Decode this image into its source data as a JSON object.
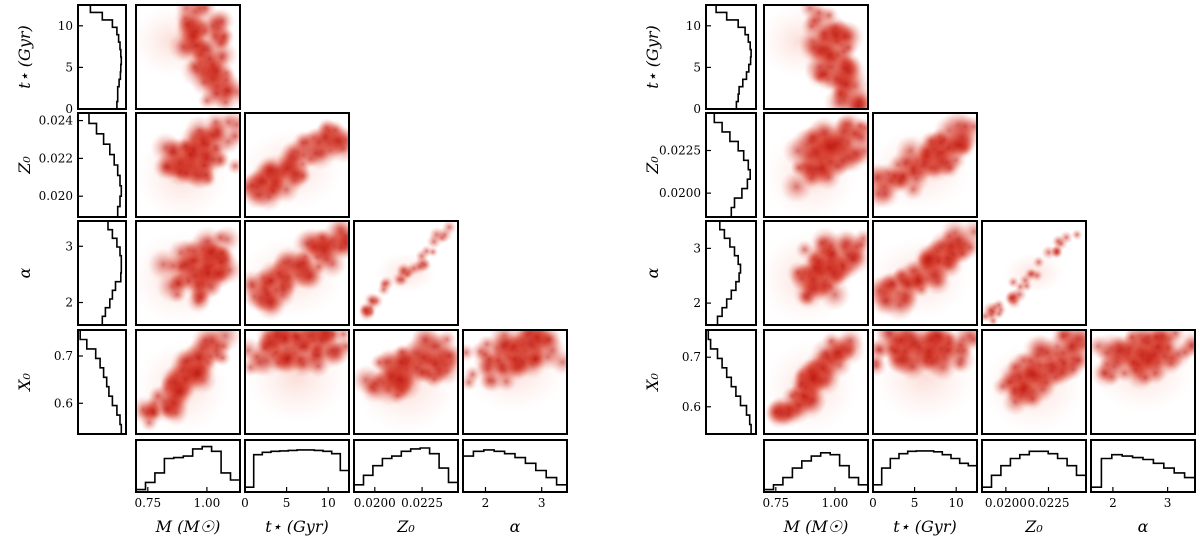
{
  "colors": {
    "density": "#c01810",
    "frame": "#000000",
    "histogram": "#000000",
    "background": "#ffffff"
  },
  "chart_data": [
    {
      "type": "corner-plot",
      "panel": "left",
      "parameters": [
        {
          "key": "M",
          "axis_label": "M (M☉)",
          "ticks": [
            0.75,
            1.0
          ],
          "tick_labels": [
            "0.75",
            "1.00"
          ],
          "range": [
            0.7,
            1.14
          ]
        },
        {
          "key": "t",
          "axis_label": "t⋆ (Gyr)",
          "ticks": [
            0,
            5,
            10
          ],
          "tick_labels": [
            "0",
            "5",
            "10"
          ],
          "range": [
            0,
            12.5
          ]
        },
        {
          "key": "Z0",
          "axis_label": "Z₀",
          "ticks": [
            0.02,
            0.022,
            0.024
          ],
          "tick_labels": [
            "0.020",
            "0.022",
            "0.024"
          ],
          "x_tick_labels": [
            "0.0200",
            "0.0225"
          ],
          "x_ticks": [
            0.02,
            0.0225
          ],
          "range": [
            0.0189,
            0.0244
          ]
        },
        {
          "key": "alpha",
          "axis_label": "α",
          "ticks": [
            2,
            3
          ],
          "tick_labels": [
            "2",
            "3"
          ],
          "range": [
            1.6,
            3.45
          ]
        },
        {
          "key": "X0",
          "axis_label": "X₀",
          "ticks": [
            0.6,
            0.7
          ],
          "tick_labels": [
            "0.6",
            "0.7"
          ],
          "range": [
            0.535,
            0.755
          ]
        }
      ],
      "histograms": {
        "t": [
          0.28,
          0.55,
          0.78,
          0.88,
          0.92,
          0.95,
          0.97,
          0.98,
          0.97,
          0.96,
          0.93,
          0.9,
          0.9,
          0.88
        ],
        "Z0": [
          0.25,
          0.42,
          0.58,
          0.72,
          0.82,
          0.9,
          0.95,
          0.98,
          0.95,
          0.9
        ],
        "alpha": [
          0.68,
          0.78,
          0.88,
          0.95,
          0.98,
          0.98,
          0.97,
          0.85,
          0.78,
          0.72,
          0.62,
          0.55
        ],
        "X0": [
          0.05,
          0.2,
          0.4,
          0.5,
          0.58,
          0.65,
          0.7,
          0.78,
          0.88,
          0.95,
          0.98
        ],
        "M": [
          0.05,
          0.2,
          0.4,
          0.7,
          0.72,
          0.75,
          0.9,
          0.95,
          0.85,
          0.4,
          0.25
        ],
        "t_bottom": [
          0.1,
          0.78,
          0.83,
          0.85,
          0.86,
          0.87,
          0.88,
          0.88,
          0.87,
          0.85,
          0.8,
          0.45
        ],
        "Z0_bottom": [
          0.15,
          0.35,
          0.55,
          0.7,
          0.75,
          0.85,
          0.9,
          0.92,
          0.8,
          0.5,
          0.2
        ],
        "alpha_bottom": [
          0.75,
          0.85,
          0.88,
          0.85,
          0.8,
          0.72,
          0.6,
          0.45,
          0.3,
          0.15
        ]
      }
    },
    {
      "type": "corner-plot",
      "panel": "right",
      "parameters": [
        {
          "key": "M",
          "axis_label": "M (M☉)",
          "ticks": [
            0.75,
            1.0
          ],
          "tick_labels": [
            "0.75",
            "1.00"
          ],
          "range": [
            0.7,
            1.14
          ]
        },
        {
          "key": "t",
          "axis_label": "t⋆ (Gyr)",
          "ticks": [
            0,
            5,
            10
          ],
          "tick_labels": [
            "0",
            "5",
            "10"
          ],
          "range": [
            0,
            12.5
          ]
        },
        {
          "key": "Z0",
          "axis_label": "Z₀",
          "ticks": [
            0.02,
            0.0225
          ],
          "tick_labels": [
            "0.0200",
            "0.0225"
          ],
          "range": [
            0.0186,
            0.0247
          ]
        },
        {
          "key": "alpha",
          "axis_label": "α",
          "ticks": [
            2,
            3
          ],
          "tick_labels": [
            "2",
            "3"
          ],
          "range": [
            1.6,
            3.5
          ]
        },
        {
          "key": "X0",
          "axis_label": "X₀",
          "ticks": [
            0.6,
            0.7
          ],
          "tick_labels": [
            "0.6",
            "0.7"
          ],
          "range": [
            0.545,
            0.755
          ]
        }
      ],
      "histograms": {
        "t": [
          0.22,
          0.45,
          0.7,
          0.85,
          0.92,
          0.96,
          0.98,
          0.97,
          0.93,
          0.88,
          0.8,
          0.72,
          0.7,
          0.66
        ],
        "Z0": [
          0.18,
          0.35,
          0.52,
          0.7,
          0.82,
          0.92,
          0.96,
          0.9,
          0.78,
          0.62,
          0.55
        ],
        "alpha": [
          0.3,
          0.4,
          0.52,
          0.62,
          0.7,
          0.75,
          0.72,
          0.65,
          0.55,
          0.45,
          0.35,
          0.25
        ],
        "X0": [
          0.05,
          0.1,
          0.25,
          0.35,
          0.45,
          0.55,
          0.65,
          0.75,
          0.88,
          0.95,
          0.98
        ],
        "M": [
          0.05,
          0.15,
          0.3,
          0.5,
          0.65,
          0.75,
          0.82,
          0.78,
          0.55,
          0.3,
          0.15
        ],
        "t_bottom": [
          0.15,
          0.5,
          0.7,
          0.8,
          0.85,
          0.86,
          0.86,
          0.84,
          0.78,
          0.7,
          0.6,
          0.55
        ],
        "Z0_bottom": [
          0.1,
          0.35,
          0.55,
          0.7,
          0.78,
          0.85,
          0.85,
          0.8,
          0.7,
          0.55,
          0.35
        ],
        "alpha_bottom": [
          0.1,
          0.7,
          0.78,
          0.75,
          0.72,
          0.68,
          0.6,
          0.5,
          0.4,
          0.3
        ]
      }
    }
  ]
}
